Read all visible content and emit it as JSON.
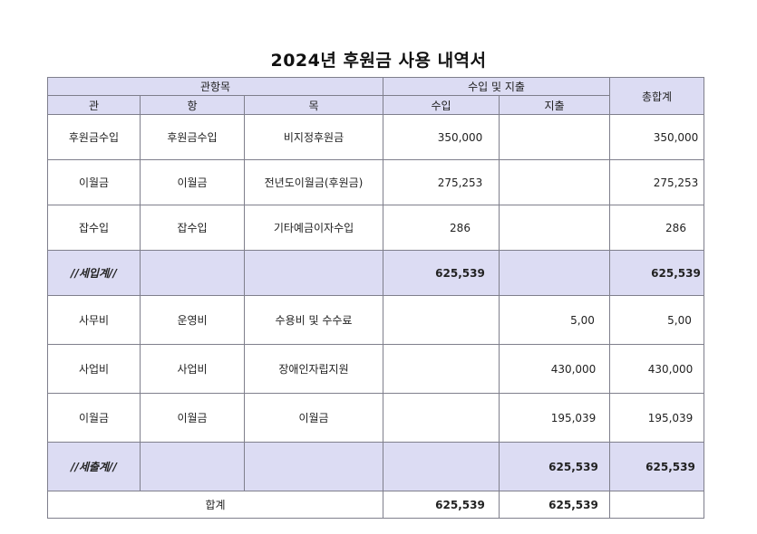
{
  "title": "2024년 후원금 사용 내역서",
  "header": {
    "group_item": "관항목",
    "group_io": "수입 및 지출",
    "total": "총합계",
    "gwan": "관",
    "hang": "항",
    "mok": "목",
    "income": "수입",
    "expense": "지출"
  },
  "income_rows": [
    {
      "gwan": "후원금수입",
      "hang": "후원금수입",
      "mok": "비지정후원금",
      "income": "350,000",
      "expense": "",
      "total": "350,000"
    },
    {
      "gwan": "이월금",
      "hang": "이월금",
      "mok": "전년도이월금(후원금)",
      "income": "275,253",
      "expense": "",
      "total": "275,253"
    },
    {
      "gwan": "잡수입",
      "hang": "잡수입",
      "mok": "기타예금이자수입",
      "income": "286",
      "expense": "",
      "total": "286"
    }
  ],
  "income_subtotal": {
    "label": "//세입계//",
    "income": "625,539",
    "total": "625,539"
  },
  "expense_rows": [
    {
      "gwan": "사무비",
      "hang": "운영비",
      "mok": "수용비 및 수수료",
      "income": "",
      "expense": "5,00",
      "total": "5,00"
    },
    {
      "gwan": "사업비",
      "hang": "사업비",
      "mok": "장애인자립지원",
      "income": "",
      "expense": "430,000",
      "total": "430,000"
    },
    {
      "gwan": "이월금",
      "hang": "이월금",
      "mok": "이월금",
      "income": "",
      "expense": "195,039",
      "total": "195,039"
    }
  ],
  "expense_subtotal": {
    "label": "//세출계//",
    "expense": "625,539",
    "total": "625,539"
  },
  "grand_total": {
    "label": "합계",
    "income": "625,539",
    "expense": "625,539"
  },
  "colors": {
    "header_bg": "#dcdcf3",
    "border": "#7f7f8c"
  }
}
